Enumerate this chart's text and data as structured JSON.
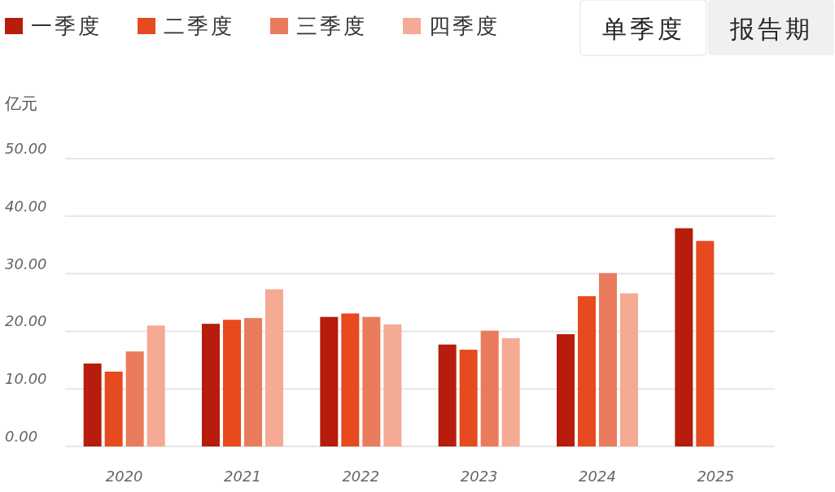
{
  "chart_data": {
    "type": "bar",
    "ylabel": "亿元",
    "categories": [
      "2020",
      "2021",
      "2022",
      "2023",
      "2024",
      "2025"
    ],
    "series": [
      {
        "name": "一季度",
        "color": "#b71c0c",
        "values": [
          14.4,
          21.3,
          22.5,
          17.7,
          19.5,
          37.9
        ]
      },
      {
        "name": "二季度",
        "color": "#e64a1e",
        "values": [
          13.0,
          22.0,
          23.1,
          16.8,
          26.1,
          35.7
        ]
      },
      {
        "name": "三季度",
        "color": "#e97b5c",
        "values": [
          16.5,
          22.3,
          22.5,
          20.1,
          30.1,
          null
        ]
      },
      {
        "name": "四季度",
        "color": "#f5aa94",
        "values": [
          21.0,
          27.3,
          21.2,
          18.8,
          26.6,
          null
        ]
      }
    ],
    "ylim": [
      0,
      50
    ],
    "yticks": [
      {
        "value": 0,
        "label": "0.00"
      },
      {
        "value": 10,
        "label": "10.00"
      },
      {
        "value": 20,
        "label": "20.00"
      },
      {
        "value": 30,
        "label": "30.00"
      },
      {
        "value": 40,
        "label": "40.00"
      },
      {
        "value": 50,
        "label": "50.00"
      }
    ],
    "grid": "y",
    "legend": "top left",
    "annotations": [
      "单季度",
      "报告期"
    ]
  }
}
